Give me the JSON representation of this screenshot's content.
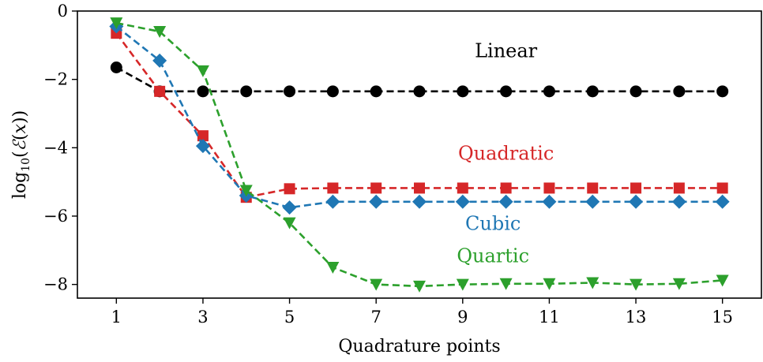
{
  "chart_data": {
    "type": "line",
    "xlabel": "Quadrature points",
    "ylabel_parts": [
      "log",
      "10",
      "(",
      "ℰ",
      "(",
      "x",
      "))"
    ],
    "xlim": [
      0.1,
      15.9
    ],
    "ylim": [
      -8.4,
      0
    ],
    "xticks": [
      1,
      3,
      5,
      7,
      9,
      11,
      13,
      15
    ],
    "yticks": [
      0,
      -2,
      -4,
      -6,
      -8
    ],
    "ytick_labels": [
      "0",
      "−2",
      "−4",
      "−6",
      "−8"
    ],
    "x": [
      1,
      2,
      3,
      4,
      5,
      6,
      7,
      8,
      9,
      10,
      11,
      12,
      13,
      14,
      15
    ],
    "series": [
      {
        "name": "Linear",
        "color": "#000000",
        "marker": "circle",
        "label_pos": [
          10.0,
          -1.35
        ],
        "values": [
          -1.65,
          -2.35,
          -2.35,
          -2.35,
          -2.35,
          -2.35,
          -2.35,
          -2.35,
          -2.35,
          -2.35,
          -2.35,
          -2.35,
          -2.35,
          -2.35,
          -2.35
        ]
      },
      {
        "name": "Quadratic",
        "color": "#d62728",
        "marker": "square",
        "label_pos": [
          10.0,
          -4.35
        ],
        "values": [
          -0.65,
          -2.35,
          -3.65,
          -5.45,
          -5.2,
          -5.18,
          -5.18,
          -5.18,
          -5.18,
          -5.18,
          -5.18,
          -5.18,
          -5.18,
          -5.18,
          -5.18
        ]
      },
      {
        "name": "Cubic",
        "color": "#1f77b4",
        "marker": "diamond",
        "label_pos": [
          9.7,
          -6.4
        ],
        "values": [
          -0.45,
          -1.45,
          -3.95,
          -5.4,
          -5.75,
          -5.58,
          -5.58,
          -5.58,
          -5.58,
          -5.58,
          -5.58,
          -5.58,
          -5.58,
          -5.58,
          -5.58
        ]
      },
      {
        "name": "Quartic",
        "color": "#2ca02c",
        "marker": "triangle-down",
        "label_pos": [
          9.7,
          -7.35
        ],
        "values": [
          -0.35,
          -0.6,
          -1.75,
          -5.25,
          -6.2,
          -7.5,
          -8.0,
          -8.05,
          -8.0,
          -7.98,
          -7.98,
          -7.95,
          -8.0,
          -7.98,
          -7.88
        ]
      }
    ]
  }
}
